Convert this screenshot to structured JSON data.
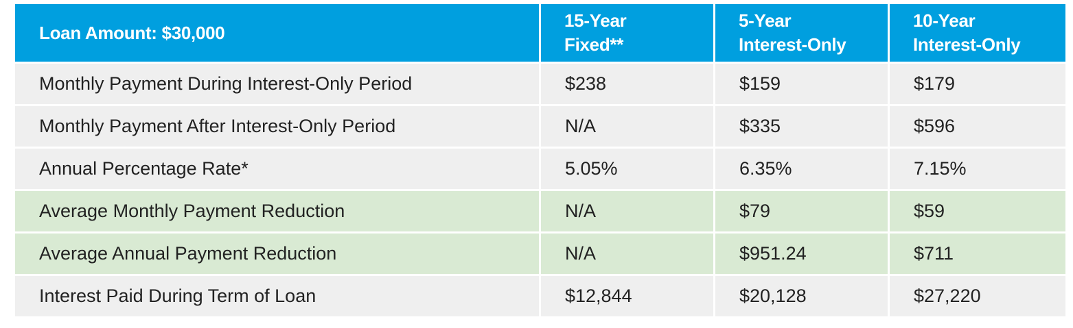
{
  "table": {
    "header": {
      "label": "Loan Amount: $30,000",
      "columns": [
        {
          "line1": "15-Year",
          "line2": "Fixed**"
        },
        {
          "line1": "5-Year",
          "line2": "Interest-Only"
        },
        {
          "line1": "10-Year",
          "line2": "Interest-Only"
        }
      ]
    },
    "rows": [
      {
        "label": "Monthly Payment During Interest-Only Period",
        "values": [
          "$238",
          "$159",
          "$179"
        ],
        "highlight": false
      },
      {
        "label": "Monthly Payment After Interest-Only Period",
        "values": [
          "N/A",
          "$335",
          "$596"
        ],
        "highlight": false
      },
      {
        "label": "Annual Percentage Rate*",
        "values": [
          "5.05%",
          "6.35%",
          "7.15%"
        ],
        "highlight": false
      },
      {
        "label": "Average Monthly Payment Reduction",
        "values": [
          "N/A",
          "$79",
          "$59"
        ],
        "highlight": true
      },
      {
        "label": "Average Annual Payment Reduction",
        "values": [
          "N/A",
          "$951.24",
          "$711"
        ],
        "highlight": true
      },
      {
        "label": "Interest Paid During Term of Loan",
        "values": [
          "$12,844",
          "$20,128",
          "$27,220"
        ],
        "highlight": false
      }
    ]
  },
  "colors": {
    "header_bg": "#009fdf",
    "header_text": "#ffffff",
    "row_bg": "#efefef",
    "highlight_bg": "#d9ead3",
    "body_text": "#222222"
  }
}
